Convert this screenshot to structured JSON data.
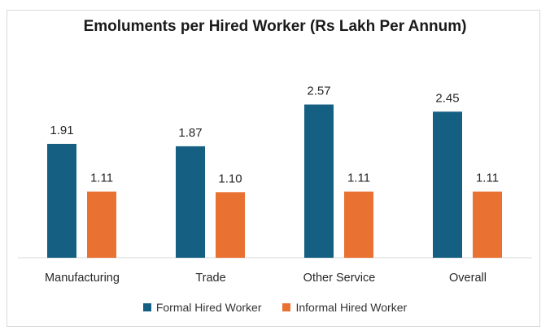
{
  "chart_data": {
    "type": "bar",
    "title": "Emoluments per Hired Worker (Rs Lakh Per Annum)",
    "categories": [
      "Manufacturing",
      "Trade",
      "Other Service",
      "Overall"
    ],
    "series": [
      {
        "name": "Formal Hired Worker",
        "values": [
          1.91,
          1.87,
          2.57,
          2.45
        ],
        "labels": [
          "1.91",
          "1.87",
          "2.57",
          "2.45"
        ],
        "color": "#156082"
      },
      {
        "name": "Informal Hired Worker",
        "values": [
          1.11,
          1.1,
          1.11,
          1.11
        ],
        "labels": [
          "1.11",
          "1.10",
          "1.11",
          "1.11"
        ],
        "color": "#E97132"
      }
    ],
    "xlabel": "",
    "ylabel": "",
    "ylim": [
      0,
      3
    ],
    "grid": false,
    "legend": "bottom"
  }
}
